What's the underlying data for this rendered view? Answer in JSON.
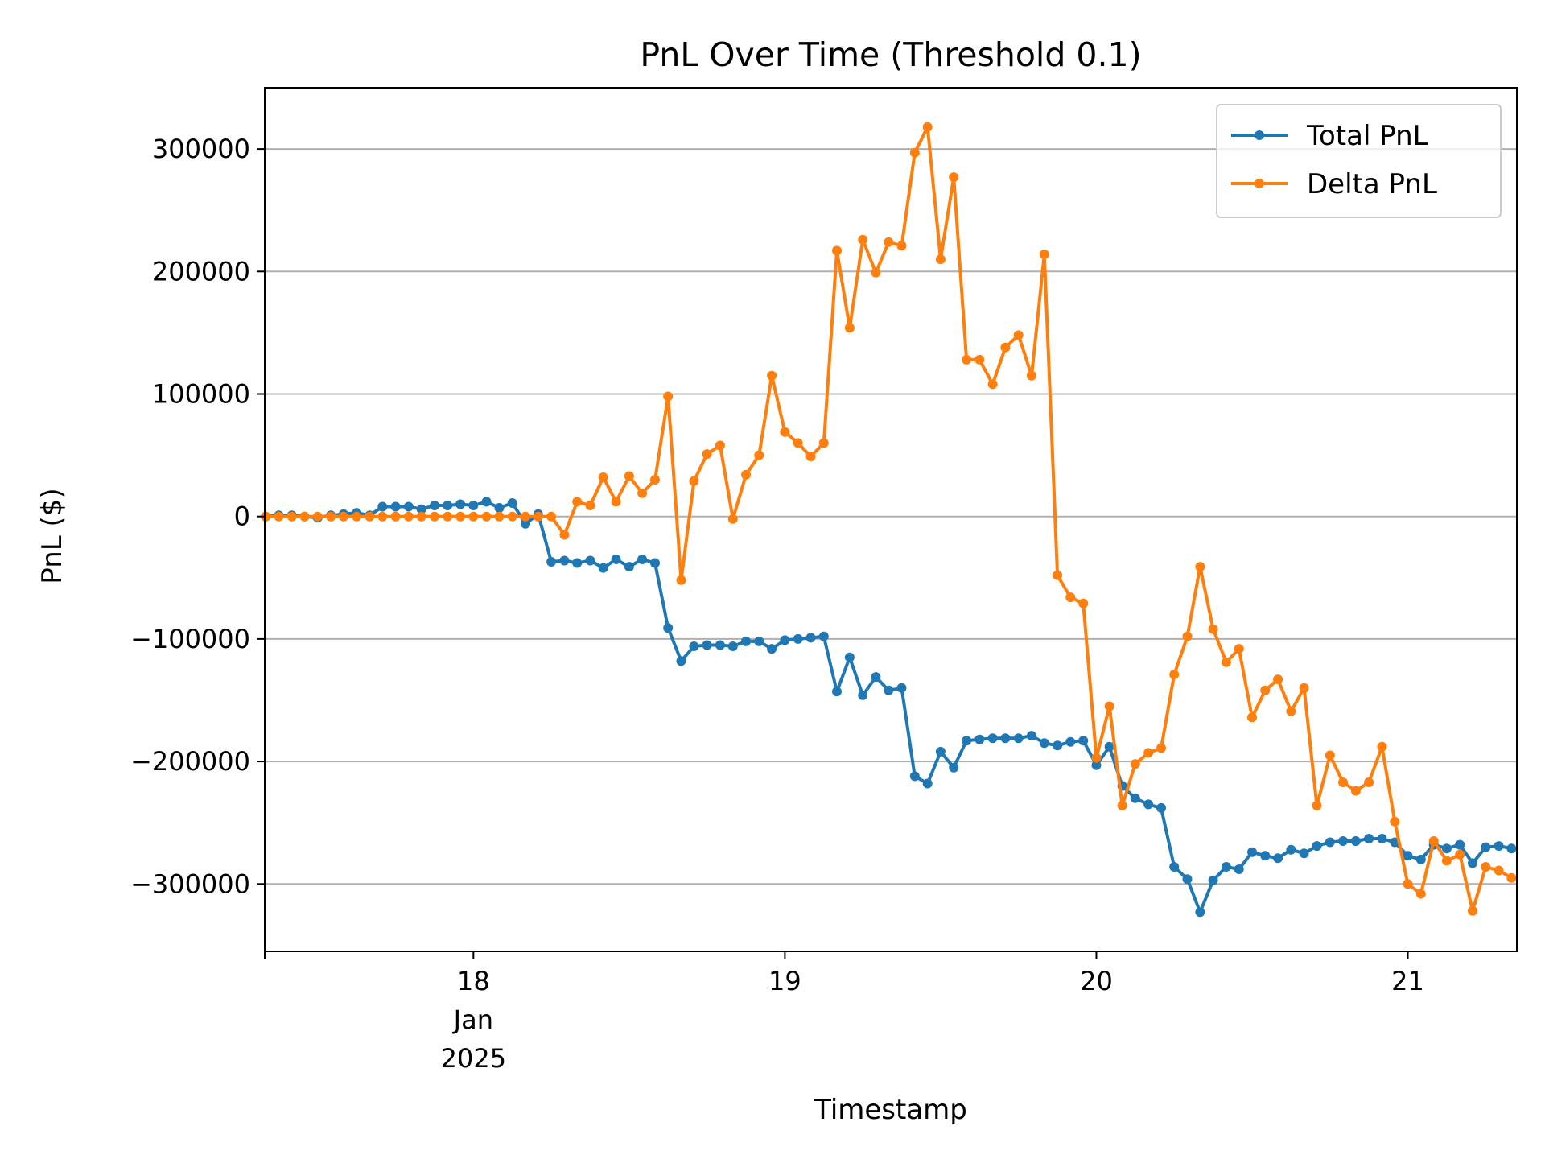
{
  "chart_data": {
    "type": "line",
    "title": "PnL Over Time (Threshold 0.1)",
    "xlabel": "Timestamp",
    "ylabel": "PnL ($)",
    "x_unit": "days in January 2025",
    "xlim": [
      17.33,
      21.35
    ],
    "ylim": [
      -355000,
      350000
    ],
    "x_ticks": [
      {
        "value": 18,
        "lines": [
          "18",
          "Jan",
          "2025"
        ]
      },
      {
        "value": 19,
        "lines": [
          "19"
        ]
      },
      {
        "value": 20,
        "lines": [
          "20"
        ]
      },
      {
        "value": 21,
        "lines": [
          "21"
        ]
      }
    ],
    "y_ticks": [
      {
        "value": 300000,
        "label": "300000"
      },
      {
        "value": 200000,
        "label": "200000"
      },
      {
        "value": 100000,
        "label": "100000"
      },
      {
        "value": 0,
        "label": "0"
      },
      {
        "value": -100000,
        "label": "−100000"
      },
      {
        "value": -200000,
        "label": "−200000"
      },
      {
        "value": -300000,
        "label": "−300000"
      }
    ],
    "grid": "horizontal",
    "legend_position": "top-right",
    "series": [
      {
        "name": "Total PnL",
        "color": "#1f77b4",
        "points": [
          [
            17.333,
            0
          ],
          [
            17.375,
            1000
          ],
          [
            17.417,
            1000
          ],
          [
            17.458,
            0
          ],
          [
            17.5,
            -1000
          ],
          [
            17.542,
            1000
          ],
          [
            17.583,
            2000
          ],
          [
            17.625,
            3000
          ],
          [
            17.667,
            1000
          ],
          [
            17.708,
            8000
          ],
          [
            17.75,
            8000
          ],
          [
            17.792,
            8000
          ],
          [
            17.833,
            6000
          ],
          [
            17.875,
            9000
          ],
          [
            17.917,
            9000
          ],
          [
            17.958,
            10000
          ],
          [
            18.0,
            9000
          ],
          [
            18.042,
            12000
          ],
          [
            18.083,
            7000
          ],
          [
            18.125,
            11000
          ],
          [
            18.167,
            -6000
          ],
          [
            18.208,
            2000
          ],
          [
            18.25,
            -37000
          ],
          [
            18.292,
            -36000
          ],
          [
            18.333,
            -38000
          ],
          [
            18.375,
            -36000
          ],
          [
            18.417,
            -42000
          ],
          [
            18.458,
            -35000
          ],
          [
            18.5,
            -41000
          ],
          [
            18.542,
            -35000
          ],
          [
            18.583,
            -38000
          ],
          [
            18.625,
            -91000
          ],
          [
            18.667,
            -118000
          ],
          [
            18.708,
            -106000
          ],
          [
            18.75,
            -105000
          ],
          [
            18.792,
            -105000
          ],
          [
            18.833,
            -106000
          ],
          [
            18.875,
            -102000
          ],
          [
            18.917,
            -102000
          ],
          [
            18.958,
            -108000
          ],
          [
            19.0,
            -101000
          ],
          [
            19.042,
            -100000
          ],
          [
            19.083,
            -99000
          ],
          [
            19.125,
            -98000
          ],
          [
            19.167,
            -143000
          ],
          [
            19.208,
            -115000
          ],
          [
            19.25,
            -146000
          ],
          [
            19.292,
            -131000
          ],
          [
            19.333,
            -142000
          ],
          [
            19.375,
            -140000
          ],
          [
            19.417,
            -212000
          ],
          [
            19.458,
            -218000
          ],
          [
            19.5,
            -192000
          ],
          [
            19.542,
            -205000
          ],
          [
            19.583,
            -183000
          ],
          [
            19.625,
            -182000
          ],
          [
            19.667,
            -181000
          ],
          [
            19.708,
            -181000
          ],
          [
            19.75,
            -181000
          ],
          [
            19.792,
            -179000
          ],
          [
            19.833,
            -185000
          ],
          [
            19.875,
            -187000
          ],
          [
            19.917,
            -184000
          ],
          [
            19.958,
            -183000
          ],
          [
            20.0,
            -203000
          ],
          [
            20.042,
            -188000
          ],
          [
            20.083,
            -220000
          ],
          [
            20.125,
            -230000
          ],
          [
            20.167,
            -235000
          ],
          [
            20.208,
            -238000
          ],
          [
            20.25,
            -286000
          ],
          [
            20.292,
            -296000
          ],
          [
            20.333,
            -323000
          ],
          [
            20.375,
            -297000
          ],
          [
            20.417,
            -286000
          ],
          [
            20.458,
            -288000
          ],
          [
            20.5,
            -274000
          ],
          [
            20.542,
            -277000
          ],
          [
            20.583,
            -279000
          ],
          [
            20.625,
            -272000
          ],
          [
            20.667,
            -275000
          ],
          [
            20.708,
            -269000
          ],
          [
            20.75,
            -266000
          ],
          [
            20.792,
            -265000
          ],
          [
            20.833,
            -265000
          ],
          [
            20.875,
            -263000
          ],
          [
            20.917,
            -263000
          ],
          [
            20.958,
            -266000
          ],
          [
            21.0,
            -277000
          ],
          [
            21.042,
            -280000
          ],
          [
            21.083,
            -268000
          ],
          [
            21.125,
            -271000
          ],
          [
            21.167,
            -268000
          ],
          [
            21.208,
            -283000
          ],
          [
            21.25,
            -270000
          ],
          [
            21.292,
            -269000
          ],
          [
            21.333,
            -271000
          ]
        ]
      },
      {
        "name": "Delta PnL",
        "color": "#ff7f0e",
        "points": [
          [
            17.333,
            0
          ],
          [
            17.375,
            0
          ],
          [
            17.417,
            0
          ],
          [
            17.458,
            0
          ],
          [
            17.5,
            0
          ],
          [
            17.542,
            0
          ],
          [
            17.583,
            0
          ],
          [
            17.625,
            0
          ],
          [
            17.667,
            0
          ],
          [
            17.708,
            0
          ],
          [
            17.75,
            0
          ],
          [
            17.792,
            0
          ],
          [
            17.833,
            0
          ],
          [
            17.875,
            0
          ],
          [
            17.917,
            0
          ],
          [
            17.958,
            0
          ],
          [
            18.0,
            0
          ],
          [
            18.042,
            0
          ],
          [
            18.083,
            0
          ],
          [
            18.125,
            0
          ],
          [
            18.167,
            0
          ],
          [
            18.208,
            0
          ],
          [
            18.25,
            0
          ],
          [
            18.292,
            -15000
          ],
          [
            18.333,
            12000
          ],
          [
            18.375,
            9000
          ],
          [
            18.417,
            32000
          ],
          [
            18.458,
            12000
          ],
          [
            18.5,
            33000
          ],
          [
            18.542,
            19000
          ],
          [
            18.583,
            30000
          ],
          [
            18.625,
            98000
          ],
          [
            18.667,
            -52000
          ],
          [
            18.708,
            29000
          ],
          [
            18.75,
            51000
          ],
          [
            18.792,
            58000
          ],
          [
            18.833,
            -2000
          ],
          [
            18.875,
            34000
          ],
          [
            18.917,
            50000
          ],
          [
            18.958,
            115000
          ],
          [
            19.0,
            69000
          ],
          [
            19.042,
            60000
          ],
          [
            19.083,
            49000
          ],
          [
            19.125,
            60000
          ],
          [
            19.167,
            217000
          ],
          [
            19.208,
            154000
          ],
          [
            19.25,
            226000
          ],
          [
            19.292,
            199000
          ],
          [
            19.333,
            224000
          ],
          [
            19.375,
            221000
          ],
          [
            19.417,
            297000
          ],
          [
            19.458,
            318000
          ],
          [
            19.5,
            210000
          ],
          [
            19.542,
            277000
          ],
          [
            19.583,
            128000
          ],
          [
            19.625,
            128000
          ],
          [
            19.667,
            108000
          ],
          [
            19.708,
            138000
          ],
          [
            19.75,
            148000
          ],
          [
            19.792,
            115000
          ],
          [
            19.833,
            214000
          ],
          [
            19.875,
            -48000
          ],
          [
            19.917,
            -66000
          ],
          [
            19.958,
            -71000
          ],
          [
            20.0,
            -197000
          ],
          [
            20.042,
            -155000
          ],
          [
            20.083,
            -236000
          ],
          [
            20.125,
            -202000
          ],
          [
            20.167,
            -193000
          ],
          [
            20.208,
            -189000
          ],
          [
            20.25,
            -129000
          ],
          [
            20.292,
            -98000
          ],
          [
            20.333,
            -41000
          ],
          [
            20.375,
            -92000
          ],
          [
            20.417,
            -119000
          ],
          [
            20.458,
            -108000
          ],
          [
            20.5,
            -164000
          ],
          [
            20.542,
            -142000
          ],
          [
            20.583,
            -133000
          ],
          [
            20.625,
            -159000
          ],
          [
            20.667,
            -140000
          ],
          [
            20.708,
            -236000
          ],
          [
            20.75,
            -195000
          ],
          [
            20.792,
            -217000
          ],
          [
            20.833,
            -224000
          ],
          [
            20.875,
            -217000
          ],
          [
            20.917,
            -188000
          ],
          [
            20.958,
            -249000
          ],
          [
            21.0,
            -300000
          ],
          [
            21.042,
            -308000
          ],
          [
            21.083,
            -265000
          ],
          [
            21.125,
            -281000
          ],
          [
            21.167,
            -276000
          ],
          [
            21.208,
            -322000
          ],
          [
            21.25,
            -286000
          ],
          [
            21.292,
            -289000
          ],
          [
            21.333,
            -295000
          ]
        ]
      }
    ]
  }
}
